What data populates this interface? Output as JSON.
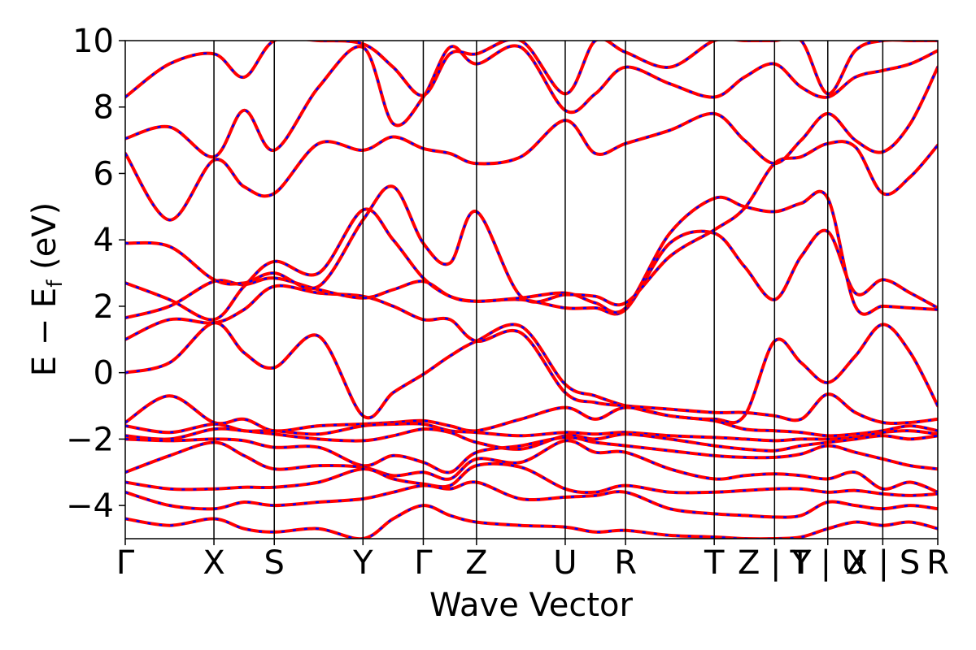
{
  "chart_data": {
    "type": "line",
    "title": "",
    "xlabel": "Wave Vector",
    "ylabel": "E − E_f (eV)",
    "ylabel_main": "E − E",
    "ylabel_sub": "f",
    "ylabel_unit": " (eV)",
    "ylim": [
      -5,
      10
    ],
    "yticks": [
      -4,
      -2,
      0,
      2,
      4,
      6,
      8,
      10
    ],
    "ytick_labels": [
      "−4",
      "−2",
      "0",
      "2",
      "4",
      "6",
      "8",
      "10"
    ],
    "grid": false,
    "colors": {
      "band_primary": "#ff0000",
      "band_secondary": "#0000ff",
      "divider": "#000000"
    },
    "kpoints": [
      {
        "label": "Γ",
        "x": 0.0
      },
      {
        "label": "X",
        "x": 1.0
      },
      {
        "label": "S",
        "x": 1.68
      },
      {
        "label": "Y",
        "x": 2.68
      },
      {
        "label": "Γ",
        "x": 3.36
      },
      {
        "label": "Z",
        "x": 3.96
      },
      {
        "label": "U",
        "x": 4.96
      },
      {
        "label": "R",
        "x": 5.64
      },
      {
        "label": "T",
        "x": 6.64
      },
      {
        "label": "Z | Y",
        "x": 7.32
      },
      {
        "label": "T | U",
        "x": 7.92
      },
      {
        "label": "X | S",
        "x": 8.54
      },
      {
        "label": "R",
        "x": 9.16
      }
    ],
    "series": [
      {
        "x": [
          0,
          0.5,
          1,
          1.34,
          1.68,
          2.18,
          2.68,
          3.02,
          3.36,
          3.66,
          3.96,
          4.46,
          4.96,
          5.3,
          5.64,
          6.14,
          6.64,
          6.98,
          7.32,
          7.62,
          7.92,
          8.23,
          8.54,
          8.85,
          9.16
        ],
        "values": [
          0,
          0.3,
          1.5,
          0.6,
          0.15,
          1.1,
          -1.3,
          -0.6,
          -0.05,
          0.5,
          0.95,
          1.4,
          -0.35,
          -0.7,
          -1.0,
          -1.3,
          -1.4,
          -1.3,
          0.95,
          0.3,
          -0.3,
          0.5,
          1.45,
          0.6,
          -1.0
        ]
      },
      {
        "x": [
          0,
          0.5,
          1,
          1.34,
          1.68,
          2.18,
          2.68,
          3.02,
          3.36,
          3.66,
          3.96,
          4.46,
          4.96,
          5.3,
          5.64,
          6.14,
          6.64,
          6.98,
          7.32,
          7.62,
          7.92,
          8.23,
          8.54,
          8.85,
          9.16
        ],
        "values": [
          1.0,
          1.6,
          1.5,
          1.9,
          2.6,
          2.4,
          2.3,
          2.0,
          1.6,
          1.6,
          0.95,
          1.2,
          -0.6,
          -0.9,
          -1.0,
          -1.1,
          -1.2,
          -1.2,
          -1.3,
          -1.4,
          -0.65,
          -1.2,
          -1.5,
          -1.5,
          -1.4
        ]
      },
      {
        "x": [
          0,
          0.5,
          1,
          1.34,
          1.68,
          2.18,
          2.68,
          3.02,
          3.36,
          3.66,
          3.96,
          4.46,
          4.96,
          5.3,
          5.64,
          6.14,
          6.64,
          6.98,
          7.32,
          7.62,
          7.92,
          8.23,
          8.54,
          8.85,
          9.16
        ],
        "values": [
          1.65,
          2.0,
          2.75,
          2.65,
          2.85,
          2.5,
          2.25,
          2.5,
          2.75,
          2.3,
          2.15,
          2.2,
          1.95,
          1.95,
          1.9,
          3.9,
          4.2,
          3.2,
          2.2,
          3.5,
          4.25,
          2.4,
          2.8,
          2.4,
          1.95
        ]
      },
      {
        "x": [
          0,
          0.5,
          1,
          1.34,
          1.68,
          2.18,
          2.68,
          3.02,
          3.36,
          3.66,
          3.96,
          4.46,
          4.96,
          5.3,
          5.64,
          6.14,
          6.64,
          6.98,
          7.32,
          7.62,
          7.92,
          8.23,
          8.54,
          8.85,
          9.16
        ],
        "values": [
          2.7,
          2.2,
          1.6,
          2.6,
          3.35,
          3.0,
          4.9,
          4.0,
          2.85,
          2.3,
          2.15,
          2.25,
          2.4,
          2.1,
          1.95,
          4.2,
          5.25,
          5.0,
          4.85,
          5.1,
          5.25,
          2.0,
          2.0,
          1.95,
          1.9
        ]
      },
      {
        "x": [
          0,
          0.5,
          1,
          1.34,
          1.68,
          2.18,
          2.68,
          3.02,
          3.36,
          3.66,
          3.96,
          4.46,
          4.96,
          5.3,
          5.64,
          6.14,
          6.64,
          6.98,
          7.32,
          7.62,
          7.92,
          8.23,
          8.54,
          8.85,
          9.16
        ],
        "values": [
          3.9,
          3.8,
          2.8,
          2.7,
          3.0,
          2.6,
          4.6,
          5.6,
          3.9,
          3.3,
          4.85,
          2.3,
          2.35,
          2.3,
          2.1,
          3.5,
          4.3,
          4.95,
          6.3,
          6.5,
          6.9,
          6.8,
          5.4,
          5.9,
          6.85
        ]
      },
      {
        "x": [
          0,
          0.5,
          1,
          1.34,
          1.68,
          2.18,
          2.68,
          3.02,
          3.36,
          3.66,
          3.96,
          4.46,
          4.96,
          5.3,
          5.64,
          6.14,
          6.64,
          6.98,
          7.32,
          7.62,
          7.92,
          8.23,
          8.54,
          8.85,
          9.16
        ],
        "values": [
          6.6,
          4.6,
          6.4,
          5.6,
          5.4,
          6.9,
          6.7,
          7.1,
          6.75,
          6.6,
          6.3,
          6.5,
          7.6,
          6.6,
          6.9,
          7.3,
          7.8,
          7.0,
          6.3,
          7.0,
          7.8,
          7.0,
          6.65,
          7.5,
          9.2
        ]
      },
      {
        "x": [
          0,
          0.5,
          1,
          1.34,
          1.68,
          2.18,
          2.68,
          3.02,
          3.36,
          3.66,
          3.96,
          4.46,
          4.96,
          5.3,
          5.64,
          6.14,
          6.64,
          6.98,
          7.32,
          7.62,
          7.92,
          8.23,
          8.54,
          8.85,
          9.16
        ],
        "values": [
          7.05,
          7.4,
          6.5,
          7.9,
          6.7,
          8.6,
          9.8,
          7.5,
          8.3,
          9.8,
          9.3,
          9.8,
          7.9,
          8.4,
          9.2,
          8.7,
          8.3,
          8.9,
          9.3,
          8.6,
          8.3,
          8.9,
          9.1,
          9.3,
          9.7
        ]
      },
      {
        "x": [
          0,
          0.5,
          1,
          1.34,
          1.68,
          2.18,
          2.68,
          3.02,
          3.36,
          3.66,
          3.96,
          4.46,
          4.96,
          5.3,
          5.64,
          6.14,
          6.64,
          6.98,
          7.32,
          7.62,
          7.92,
          8.23,
          8.54,
          8.85,
          9.16
        ],
        "values": [
          8.3,
          9.3,
          9.6,
          8.9,
          10,
          10,
          9.9,
          9.2,
          8.35,
          9.6,
          9.6,
          10,
          8.4,
          10,
          9.65,
          9.2,
          10,
          10,
          10,
          10,
          8.4,
          9.7,
          10,
          10,
          10
        ]
      },
      {
        "x": [
          0,
          0.5,
          1,
          1.34,
          1.68,
          2.18,
          2.68,
          3.02,
          3.36,
          3.66,
          3.96,
          4.46,
          4.96,
          5.3,
          5.64,
          6.14,
          6.64,
          6.98,
          7.32,
          7.62,
          7.92,
          8.23,
          8.54,
          8.85,
          9.16
        ],
        "values": [
          -1.5,
          -0.7,
          -1.5,
          -1.4,
          -1.75,
          -1.6,
          -1.55,
          -1.5,
          -1.45,
          -1.6,
          -1.75,
          -1.4,
          -1.05,
          -1.4,
          -1.05,
          -1.3,
          -1.45,
          -1.7,
          -1.75,
          -1.8,
          -1.9,
          -1.85,
          -1.75,
          -1.6,
          -1.75
        ]
      },
      {
        "x": [
          0,
          0.5,
          1,
          1.34,
          1.68,
          2.18,
          2.68,
          3.02,
          3.36,
          3.66,
          3.96,
          4.46,
          4.96,
          5.3,
          5.64,
          6.14,
          6.64,
          6.98,
          7.32,
          7.62,
          7.92,
          8.23,
          8.54,
          8.85,
          9.16
        ],
        "values": [
          -1.6,
          -1.8,
          -1.55,
          -1.75,
          -1.75,
          -1.85,
          -1.6,
          -1.55,
          -1.55,
          -1.75,
          -1.8,
          -1.9,
          -1.8,
          -1.85,
          -1.8,
          -1.9,
          -1.95,
          -2.0,
          -2.05,
          -2.0,
          -2.0,
          -1.95,
          -1.8,
          -1.75,
          -1.85
        ]
      },
      {
        "x": [
          0,
          0.5,
          1,
          1.34,
          1.68,
          2.18,
          2.68,
          3.02,
          3.36,
          3.66,
          3.96,
          4.46,
          4.96,
          5.3,
          5.64,
          6.14,
          6.64,
          6.98,
          7.32,
          7.62,
          7.92,
          8.23,
          8.54,
          8.85,
          9.16
        ],
        "values": [
          -1.9,
          -2.0,
          -1.7,
          -1.75,
          -1.85,
          -2.0,
          -2.05,
          -1.9,
          -1.7,
          -1.8,
          -2.1,
          -2.3,
          -1.9,
          -2.0,
          -1.85,
          -2.0,
          -2.2,
          -2.3,
          -2.35,
          -2.2,
          -2.1,
          -2.0,
          -1.9,
          -2.0,
          -1.9
        ]
      },
      {
        "x": [
          0,
          0.5,
          1,
          1.34,
          1.68,
          2.18,
          2.68,
          3.02,
          3.36,
          3.66,
          3.96,
          4.46,
          4.96,
          5.3,
          5.64,
          6.14,
          6.64,
          6.98,
          7.32,
          7.62,
          7.92,
          8.23,
          8.54,
          8.85,
          9.16
        ],
        "values": [
          -2.0,
          -2.05,
          -2.0,
          -2.05,
          -2.25,
          -2.25,
          -2.8,
          -2.5,
          -2.7,
          -3.0,
          -2.4,
          -2.2,
          -1.95,
          -2.1,
          -2.2,
          -2.35,
          -2.5,
          -2.55,
          -2.55,
          -2.45,
          -2.2,
          -2.4,
          -2.6,
          -2.8,
          -2.9
        ]
      },
      {
        "x": [
          0,
          0.5,
          1,
          1.34,
          1.68,
          2.18,
          2.68,
          3.02,
          3.36,
          3.66,
          3.96,
          4.46,
          4.96,
          5.3,
          5.64,
          6.14,
          6.64,
          6.98,
          7.32,
          7.62,
          7.92,
          8.23,
          8.54,
          8.85,
          9.16
        ],
        "values": [
          -3.0,
          -2.5,
          -2.1,
          -2.5,
          -2.9,
          -2.8,
          -2.85,
          -3.1,
          -3.0,
          -3.2,
          -2.6,
          -2.7,
          -2.05,
          -2.4,
          -2.4,
          -2.9,
          -3.2,
          -3.1,
          -3.05,
          -3.1,
          -3.2,
          -3.0,
          -3.5,
          -3.3,
          -3.6
        ]
      },
      {
        "x": [
          0,
          0.5,
          1,
          1.34,
          1.68,
          2.18,
          2.68,
          3.02,
          3.36,
          3.66,
          3.96,
          4.46,
          4.96,
          5.3,
          5.64,
          6.14,
          6.64,
          6.98,
          7.32,
          7.62,
          7.92,
          8.23,
          8.54,
          8.85,
          9.16
        ],
        "values": [
          -3.3,
          -3.5,
          -3.5,
          -3.45,
          -3.45,
          -3.3,
          -2.9,
          -3.2,
          -3.35,
          -3.4,
          -2.8,
          -2.85,
          -3.5,
          -3.6,
          -3.4,
          -3.6,
          -3.6,
          -3.55,
          -3.5,
          -3.5,
          -3.6,
          -3.55,
          -3.65,
          -3.7,
          -3.65
        ]
      },
      {
        "x": [
          0,
          0.5,
          1,
          1.34,
          1.68,
          2.18,
          2.68,
          3.02,
          3.36,
          3.66,
          3.96,
          4.46,
          4.96,
          5.3,
          5.64,
          6.14,
          6.64,
          6.98,
          7.32,
          7.62,
          7.92,
          8.23,
          8.54,
          8.85,
          9.16
        ],
        "values": [
          -3.6,
          -4.0,
          -4.1,
          -3.9,
          -4.0,
          -3.9,
          -3.8,
          -3.6,
          -3.4,
          -3.5,
          -3.3,
          -3.8,
          -3.75,
          -3.7,
          -3.6,
          -4.1,
          -4.25,
          -4.3,
          -4.35,
          -4.3,
          -3.9,
          -4.0,
          -4.1,
          -4.0,
          -4.1
        ]
      },
      {
        "x": [
          0,
          0.5,
          1,
          1.34,
          1.68,
          2.18,
          2.68,
          3.02,
          3.36,
          3.66,
          3.96,
          4.46,
          4.96,
          5.3,
          5.64,
          6.14,
          6.64,
          6.98,
          7.32,
          7.62,
          7.92,
          8.23,
          8.54,
          8.85,
          9.16
        ],
        "values": [
          -4.4,
          -4.6,
          -4.4,
          -4.7,
          -4.8,
          -4.7,
          -5.0,
          -4.4,
          -4.0,
          -4.3,
          -4.5,
          -4.6,
          -4.65,
          -4.8,
          -4.75,
          -4.9,
          -4.95,
          -5.0,
          -5.0,
          -4.95,
          -4.7,
          -4.5,
          -4.6,
          -4.5,
          -4.7
        ]
      }
    ]
  }
}
